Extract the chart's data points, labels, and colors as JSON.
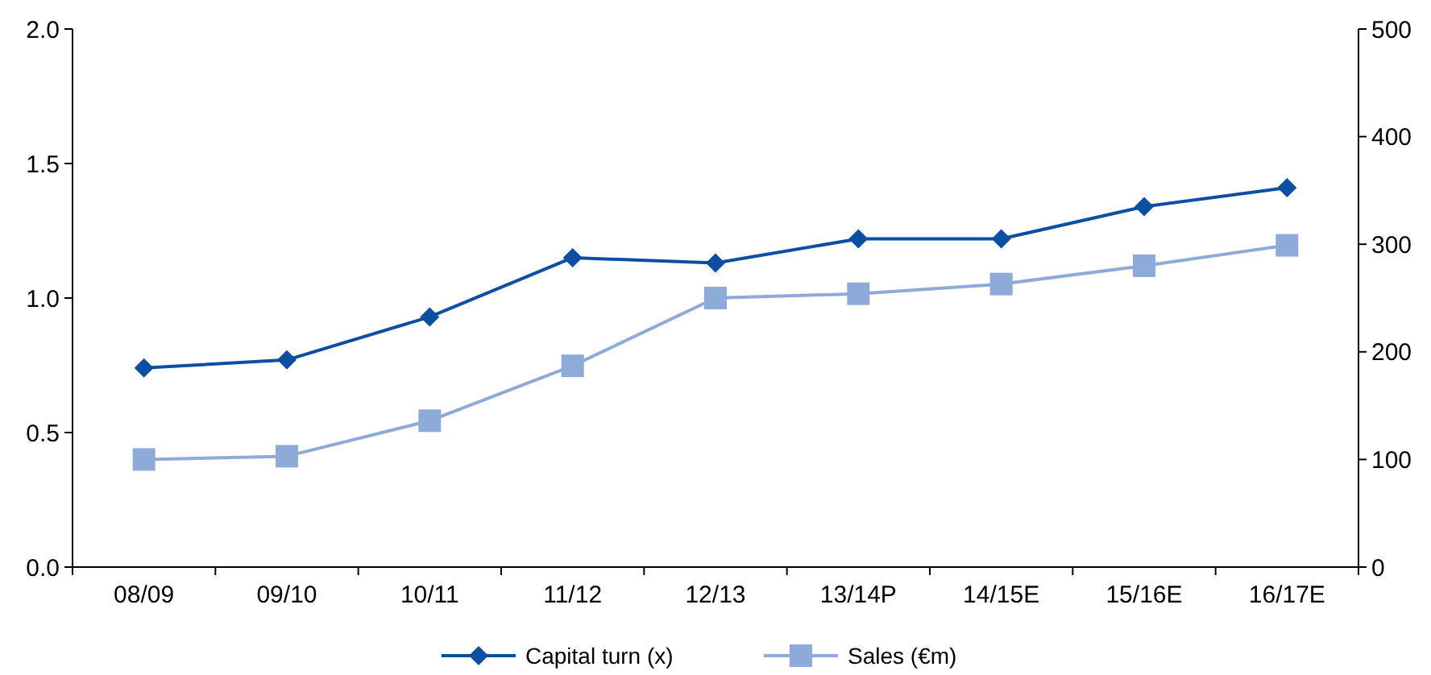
{
  "chart_data": {
    "type": "line",
    "categories": [
      "08/09",
      "09/10",
      "10/11",
      "11/12",
      "12/13",
      "13/14P",
      "14/15E",
      "15/16E",
      "16/17E"
    ],
    "series": [
      {
        "name": "Capital turn (x)",
        "color": "#0b4ea2",
        "marker": "diamond",
        "values": [
          0.74,
          0.77,
          0.93,
          1.15,
          1.13,
          1.22,
          1.22,
          1.34,
          1.41
        ]
      },
      {
        "name": "Sales (€m)",
        "color": "#8eaad8",
        "marker": "square",
        "axis": "y2",
        "values": [
          100,
          103,
          136,
          187,
          250,
          254,
          263,
          280,
          299
        ]
      }
    ],
    "ylim": [
      0,
      2
    ],
    "yticks": [
      {
        "value": 0,
        "label": "0.0"
      },
      {
        "value": 0.5,
        "label": "0.5"
      },
      {
        "value": 1,
        "label": "1.0"
      },
      {
        "value": 1.5,
        "label": "1.5"
      },
      {
        "value": 2,
        "label": "2.0"
      }
    ],
    "y2lim": [
      0,
      500
    ],
    "y2ticks": [
      0,
      100,
      200,
      300,
      400,
      500
    ],
    "grid": false,
    "legend": "bottom",
    "line_style": "solid"
  }
}
